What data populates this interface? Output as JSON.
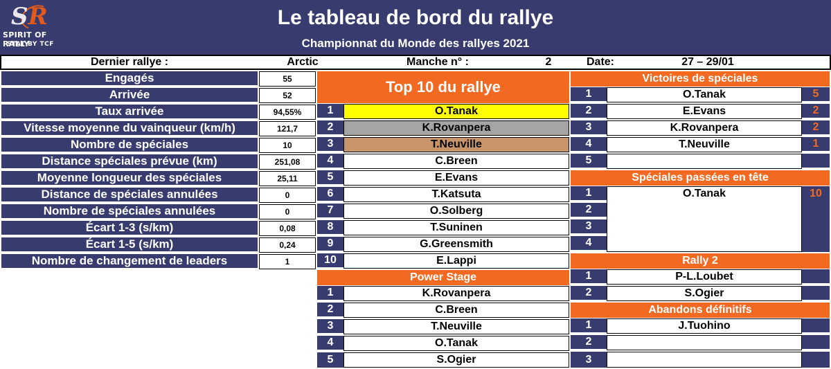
{
  "header": {
    "title": "Le tableau de bord du rallye",
    "subtitle": "Championnat du Monde des rallyes 2021"
  },
  "logo": {
    "letters_s": "S",
    "letters_r": "R",
    "line1": "SPIRIT OF RALLY",
    "line2": "STAT BY TCF"
  },
  "info_bar": {
    "rally_label": "Dernier rallye :",
    "rally_value": "Arctic",
    "round_label": "Manche n° :",
    "round_value": "2",
    "date_label": "Date:",
    "date_value": "27 – 29/01"
  },
  "stats": [
    {
      "label": "Engagés",
      "value": "55"
    },
    {
      "label": "Arrivée",
      "value": "52"
    },
    {
      "label": "Taux arrivée",
      "value": "94,55%"
    },
    {
      "label": "Vitesse moyenne du vainqueur (km/h)",
      "value": "121,7"
    },
    {
      "label": "Nombre de spéciales",
      "value": "10"
    },
    {
      "label": "Distance spéciales prévue (km)",
      "value": "251,08"
    },
    {
      "label": "Moyenne longueur des spéciales",
      "value": "25,11"
    },
    {
      "label": "Distance de spéciales annulées",
      "value": "0"
    },
    {
      "label": "Nombre de spéciales annulées",
      "value": "0"
    },
    {
      "label": "Écart 1-3 (s/km)",
      "value": "0,08"
    },
    {
      "label": "Écart 1-5 (s/km)",
      "value": "0,24"
    },
    {
      "label": "Nombre de changement de leaders",
      "value": "1"
    }
  ],
  "top10": {
    "title": "Top 10 du rallye",
    "rows": [
      {
        "pos": "1",
        "name": "O.Tanak",
        "color": "#ffff00"
      },
      {
        "pos": "2",
        "name": "K.Rovanpera",
        "color": "#a5a5a5"
      },
      {
        "pos": "3",
        "name": "T.Neuville",
        "color": "#c8946a"
      },
      {
        "pos": "4",
        "name": "C.Breen",
        "color": "#ffffff"
      },
      {
        "pos": "5",
        "name": "E.Evans",
        "color": "#ffffff"
      },
      {
        "pos": "6",
        "name": "T.Katsuta",
        "color": "#ffffff"
      },
      {
        "pos": "7",
        "name": "O.Solberg",
        "color": "#ffffff"
      },
      {
        "pos": "8",
        "name": "T.Suninen",
        "color": "#ffffff"
      },
      {
        "pos": "9",
        "name": "G.Greensmith",
        "color": "#ffffff"
      },
      {
        "pos": "10",
        "name": "E.Lappi",
        "color": "#ffffff"
      }
    ]
  },
  "power_stage": {
    "title": "Power Stage",
    "rows": [
      {
        "pos": "1",
        "name": "K.Rovanpera"
      },
      {
        "pos": "2",
        "name": "C.Breen"
      },
      {
        "pos": "3",
        "name": "T.Neuville"
      },
      {
        "pos": "4",
        "name": "O.Tanak"
      },
      {
        "pos": "5",
        "name": "S.Ogier"
      }
    ]
  },
  "stage_wins": {
    "title": "Victoires de spéciales",
    "rows": [
      {
        "pos": "1",
        "name": "O.Tanak",
        "count": "5"
      },
      {
        "pos": "2",
        "name": "E.Evans",
        "count": "2"
      },
      {
        "pos": "3",
        "name": "K.Rovanpera",
        "count": "2"
      },
      {
        "pos": "4",
        "name": "T.Neuville",
        "count": "1"
      },
      {
        "pos": "5",
        "name": "",
        "count": ""
      }
    ]
  },
  "stages_led": {
    "title": "Spéciales passées en tête",
    "rows": [
      {
        "pos": "1",
        "name": "O.Tanak",
        "count": "10"
      },
      {
        "pos": "2",
        "name": "",
        "count": ""
      },
      {
        "pos": "3",
        "name": "",
        "count": ""
      },
      {
        "pos": "4",
        "name": "",
        "count": ""
      }
    ]
  },
  "rally2": {
    "title": "Rally 2",
    "rows": [
      {
        "pos": "1",
        "name": "P-L.Loubet"
      },
      {
        "pos": "2",
        "name": "S.Ogier"
      }
    ]
  },
  "retirements": {
    "title": "Abandons définitifs",
    "rows": [
      {
        "pos": "1",
        "name": "J.Tuohino"
      },
      {
        "pos": "2",
        "name": ""
      },
      {
        "pos": "3",
        "name": ""
      }
    ]
  },
  "colors": {
    "navy": "#383b6e",
    "orange": "#f26a22",
    "gold": "#ffff00",
    "silver": "#a5a5a5",
    "bronze": "#c8946a"
  }
}
